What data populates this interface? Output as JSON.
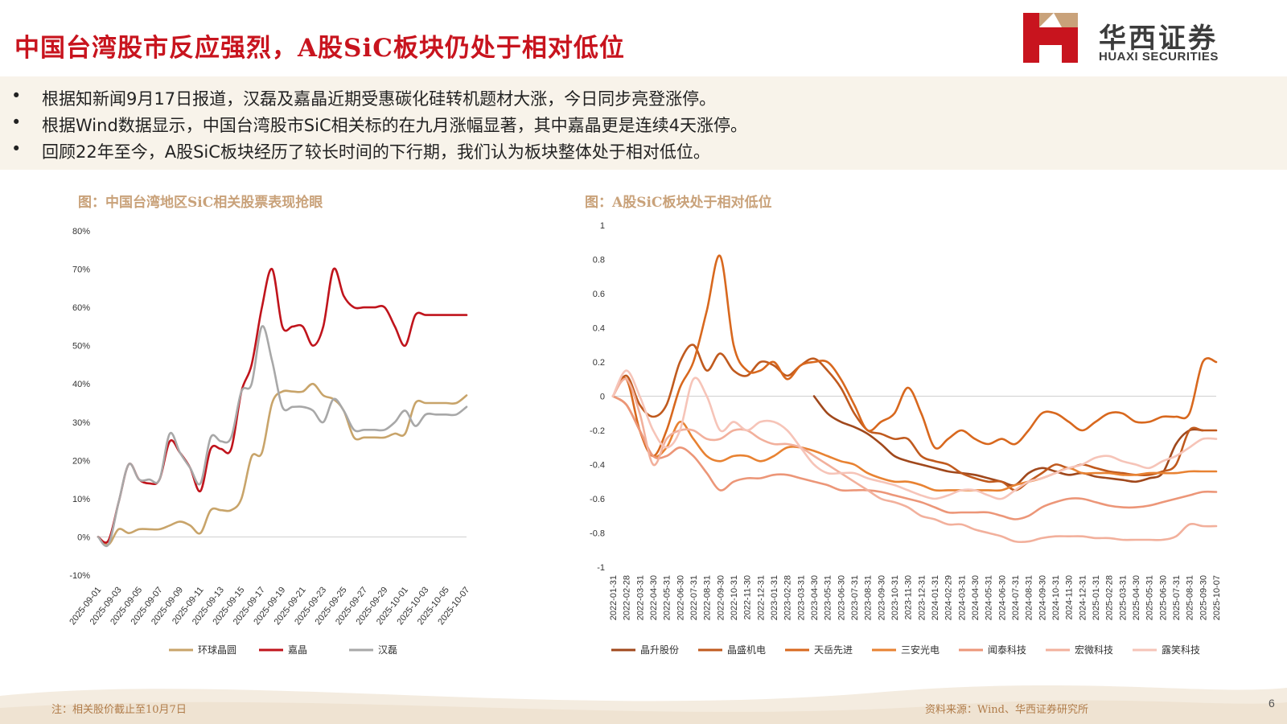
{
  "title": "中国台湾股市反应强烈，A股SiC板块仍处于相对低位",
  "logo": {
    "cn": "华西证券",
    "en": "HUAXI SECURITIES"
  },
  "bullets": [
    "根据知新闻9月17日报道，汉磊及嘉晶近期受惠碳化硅转机题材大涨，今日同步亮登涨停。",
    "根据Wind数据显示，中国台湾股市SiC相关标的在九月涨幅显著，其中嘉晶更是连续4天涨停。",
    "回顾22年至今，A股SiC板块经历了较长时间的下行期，我们认为板块整体处于相对低位。"
  ],
  "bullet_symbol": "•",
  "note": "注：相关股价截止至10月7日",
  "source": "资料来源：Wind、华西证券研究所",
  "page_number": "6",
  "colors": {
    "title": "#c8141e",
    "chart_title": "#c9a27a",
    "left_series": [
      "#c8a46a",
      "#c0141c",
      "#a8a8a8"
    ],
    "right_series": [
      "#a0481c",
      "#c05a1e",
      "#d8681e",
      "#e88232",
      "#ec9678",
      "#f2b09c",
      "#f6c4b8"
    ]
  },
  "chart_data": [
    {
      "type": "line",
      "title": "图：中国台湾地区SiC相关股票表现抢眼",
      "x_tick_labels": [
        "2025-09-01",
        "2025-09-03",
        "2025-09-05",
        "2025-09-07",
        "2025-09-09",
        "2025-09-11",
        "2025-09-13",
        "2025-09-15",
        "2025-09-17",
        "2025-09-19",
        "2025-09-21",
        "2025-09-23",
        "2025-09-25",
        "2025-09-27",
        "2025-09-29",
        "2025-10-01",
        "2025-10-03",
        "2025-10-05",
        "2025-10-07"
      ],
      "y_tick_labels": [
        "80%",
        "70%",
        "60%",
        "50%",
        "40%",
        "30%",
        "20%",
        "10%",
        "0%",
        "-10%"
      ],
      "ylim": [
        -10,
        80
      ],
      "x_count": 37,
      "series": [
        {
          "name": "环球晶圆",
          "values": [
            0,
            -2,
            2,
            1,
            2,
            2,
            2,
            3,
            4,
            3,
            1,
            7,
            7,
            7,
            10,
            21,
            22,
            35,
            38,
            38,
            38,
            40,
            37,
            36,
            33,
            26,
            26,
            26,
            26,
            27,
            27,
            35,
            35,
            35,
            35,
            35,
            37
          ]
        },
        {
          "name": "嘉晶",
          "values": [
            0,
            -1,
            9,
            19,
            15,
            14,
            15,
            25,
            22,
            18,
            12,
            23,
            23,
            23,
            38,
            45,
            60,
            70,
            55,
            55,
            55,
            50,
            55,
            70,
            63,
            60,
            60,
            60,
            60,
            55,
            50,
            58,
            58,
            58,
            58,
            58,
            58
          ]
        },
        {
          "name": "汉磊",
          "values": [
            0,
            -2,
            9,
            19,
            15,
            15,
            15,
            27,
            22,
            18,
            14,
            26,
            25,
            26,
            38,
            40,
            55,
            46,
            34,
            34,
            34,
            33,
            30,
            36,
            33,
            28,
            28,
            28,
            28,
            30,
            33,
            29,
            32,
            32,
            32,
            32,
            34
          ]
        }
      ]
    },
    {
      "type": "line",
      "title": "图：A股SiC板块处于相对低位",
      "x_tick_labels": [
        "2022-01-31",
        "2022-02-28",
        "2022-03-31",
        "2022-04-30",
        "2022-05-31",
        "2022-06-30",
        "2022-07-31",
        "2022-08-31",
        "2022-09-30",
        "2022-10-31",
        "2022-11-30",
        "2022-12-31",
        "2023-01-31",
        "2023-02-28",
        "2023-03-31",
        "2023-04-30",
        "2023-05-31",
        "2023-06-30",
        "2023-07-31",
        "2023-08-31",
        "2023-09-30",
        "2023-10-31",
        "2023-11-30",
        "2023-12-31",
        "2024-01-31",
        "2024-02-29",
        "2024-03-31",
        "2024-04-30",
        "2024-05-31",
        "2024-06-30",
        "2024-07-31",
        "2024-08-31",
        "2024-09-30",
        "2024-10-31",
        "2024-11-30",
        "2024-12-31",
        "2025-01-31",
        "2025-02-28",
        "2025-03-31",
        "2025-04-30",
        "2025-05-31",
        "2025-06-30",
        "2025-07-31",
        "2025-08-31",
        "2025-09-30",
        "2025-10-07"
      ],
      "y_tick_labels": [
        "1",
        "0.8",
        "0.6",
        "0.4",
        "0.2",
        "0",
        "-0.2",
        "-0.4",
        "-0.6",
        "-0.8",
        "-1"
      ],
      "ylim": [
        -1,
        1
      ],
      "x_count": 46,
      "series": [
        {
          "name": "晶升股份",
          "start": 15,
          "values": [
            0,
            -0.1,
            -0.15,
            -0.18,
            -0.22,
            -0.28,
            -0.35,
            -0.38,
            -0.4,
            -0.42,
            -0.44,
            -0.45,
            -0.46,
            -0.48,
            -0.5,
            -0.52,
            -0.45,
            -0.42,
            -0.44,
            -0.46,
            -0.45,
            -0.47,
            -0.48,
            -0.49,
            -0.5,
            -0.48,
            -0.45,
            -0.28,
            -0.2,
            -0.2
          ]
        },
        {
          "name": "晶盛机电",
          "values": [
            0,
            0.12,
            -0.05,
            -0.12,
            -0.05,
            0.2,
            0.3,
            0.15,
            0.25,
            0.15,
            0.12,
            0.2,
            0.18,
            0.12,
            0.18,
            0.22,
            0.15,
            0.05,
            -0.1,
            -0.2,
            -0.22,
            -0.25,
            -0.25,
            -0.35,
            -0.38,
            -0.4,
            -0.45,
            -0.48,
            -0.5,
            -0.5,
            -0.55,
            -0.5,
            -0.45,
            -0.4,
            -0.42,
            -0.4,
            -0.42,
            -0.44,
            -0.45,
            -0.46,
            -0.46,
            -0.44,
            -0.4,
            -0.2,
            -0.2,
            -0.2
          ]
        },
        {
          "name": "天岳先进",
          "values": [
            0,
            0.1,
            -0.2,
            -0.35,
            -0.2,
            0.05,
            0.2,
            0.5,
            0.82,
            0.3,
            0.15,
            0.15,
            0.2,
            0.1,
            0.18,
            0.2,
            0.2,
            0.1,
            -0.05,
            -0.2,
            -0.15,
            -0.1,
            0.05,
            -0.1,
            -0.3,
            -0.25,
            -0.2,
            -0.25,
            -0.28,
            -0.25,
            -0.28,
            -0.2,
            -0.1,
            -0.1,
            -0.15,
            -0.2,
            -0.15,
            -0.1,
            -0.1,
            -0.15,
            -0.15,
            -0.12,
            -0.12,
            -0.1,
            0.2,
            0.2
          ]
        },
        {
          "name": "三安光电",
          "values": [
            0,
            -0.05,
            -0.2,
            -0.35,
            -0.3,
            -0.15,
            -0.25,
            -0.35,
            -0.38,
            -0.35,
            -0.35,
            -0.38,
            -0.35,
            -0.3,
            -0.3,
            -0.32,
            -0.35,
            -0.38,
            -0.4,
            -0.45,
            -0.48,
            -0.5,
            -0.5,
            -0.52,
            -0.55,
            -0.55,
            -0.55,
            -0.55,
            -0.55,
            -0.55,
            -0.52,
            -0.5,
            -0.48,
            -0.45,
            -0.42,
            -0.45,
            -0.45,
            -0.45,
            -0.46,
            -0.46,
            -0.45,
            -0.45,
            -0.45,
            -0.44,
            -0.44,
            -0.44
          ]
        },
        {
          "name": "闻泰科技",
          "values": [
            0,
            -0.05,
            -0.2,
            -0.35,
            -0.35,
            -0.3,
            -0.35,
            -0.45,
            -0.55,
            -0.5,
            -0.48,
            -0.48,
            -0.46,
            -0.46,
            -0.48,
            -0.5,
            -0.52,
            -0.55,
            -0.55,
            -0.55,
            -0.56,
            -0.58,
            -0.6,
            -0.62,
            -0.65,
            -0.68,
            -0.68,
            -0.68,
            -0.68,
            -0.7,
            -0.72,
            -0.7,
            -0.65,
            -0.62,
            -0.6,
            -0.6,
            -0.62,
            -0.64,
            -0.65,
            -0.65,
            -0.64,
            -0.62,
            -0.6,
            -0.58,
            -0.56,
            -0.56
          ]
        },
        {
          "name": "宏微科技",
          "values": [
            0,
            0.1,
            -0.1,
            -0.4,
            -0.25,
            -0.2,
            -0.2,
            -0.25,
            -0.25,
            -0.2,
            -0.2,
            -0.25,
            -0.28,
            -0.28,
            -0.3,
            -0.35,
            -0.4,
            -0.45,
            -0.5,
            -0.55,
            -0.6,
            -0.62,
            -0.65,
            -0.7,
            -0.72,
            -0.75,
            -0.75,
            -0.78,
            -0.8,
            -0.82,
            -0.85,
            -0.85,
            -0.83,
            -0.82,
            -0.82,
            -0.82,
            -0.83,
            -0.83,
            -0.84,
            -0.84,
            -0.84,
            -0.84,
            -0.82,
            -0.75,
            -0.76,
            -0.76
          ]
        },
        {
          "name": "露笑科技",
          "values": [
            0,
            0.15,
            0.0,
            -0.2,
            -0.3,
            -0.2,
            0.1,
            0.0,
            -0.2,
            -0.15,
            -0.2,
            -0.15,
            -0.15,
            -0.2,
            -0.3,
            -0.4,
            -0.45,
            -0.45,
            -0.45,
            -0.48,
            -0.5,
            -0.52,
            -0.55,
            -0.58,
            -0.6,
            -0.58,
            -0.55,
            -0.55,
            -0.58,
            -0.6,
            -0.55,
            -0.5,
            -0.48,
            -0.45,
            -0.42,
            -0.4,
            -0.36,
            -0.35,
            -0.38,
            -0.4,
            -0.42,
            -0.38,
            -0.35,
            -0.3,
            -0.25,
            -0.25
          ]
        }
      ]
    }
  ]
}
